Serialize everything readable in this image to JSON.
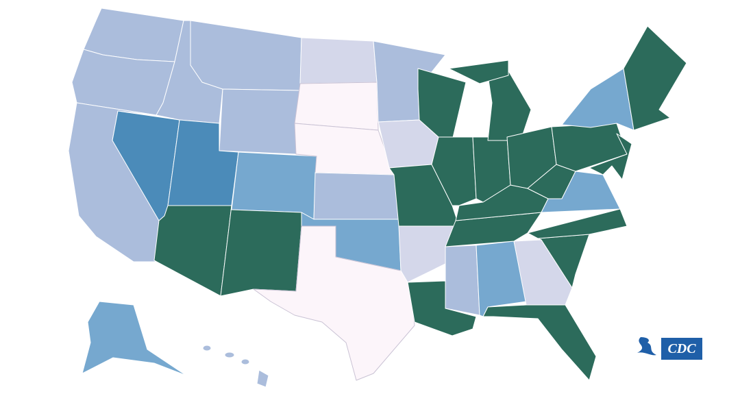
{
  "logo": {
    "text": "CDC"
  }
}
